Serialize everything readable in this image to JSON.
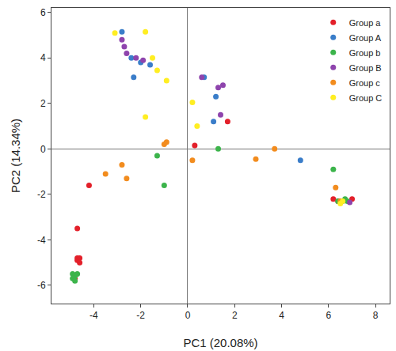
{
  "chart_data": {
    "type": "scatter",
    "x_label": "PC1 (20.08%)",
    "y_label": "PC2 (14.34%)",
    "xlim": [
      -5.8,
      8.6
    ],
    "ylim": [
      -6.8,
      6.2
    ],
    "xticks": [
      -4,
      -2,
      0,
      2,
      4,
      6,
      8
    ],
    "yticks": [
      -6,
      -4,
      -2,
      0,
      2,
      4,
      6
    ],
    "grid": false,
    "legend": "top-right",
    "marker": "circle",
    "series": [
      {
        "name": "Group a",
        "color": "#e3202a",
        "x": [
          -4.7,
          -4.7,
          -4.6,
          -4.6,
          -4.8,
          -4.7,
          -4.2,
          0.3,
          1.7,
          6.2,
          7.0,
          6.4
        ],
        "values": [
          -4.8,
          -4.9,
          -4.8,
          -5.0,
          -5.7,
          -3.5,
          -1.6,
          0.15,
          1.2,
          -2.2,
          -2.2,
          -2.3
        ]
      },
      {
        "name": "Group A",
        "color": "#3a7dc9",
        "x": [
          -2.8,
          -2.4,
          -2.0,
          -1.6,
          -2.3,
          0.7,
          1.2,
          1.1,
          4.8,
          6.6
        ],
        "values": [
          5.15,
          4.0,
          3.8,
          3.7,
          3.15,
          3.15,
          2.3,
          1.2,
          -0.5,
          -2.3
        ]
      },
      {
        "name": "Group b",
        "color": "#3cb44b",
        "x": [
          -4.9,
          -4.8,
          -4.9,
          -4.7,
          -4.8,
          -1.3,
          -1.0,
          1.3,
          6.2,
          6.4,
          6.8,
          6.7
        ],
        "values": [
          -5.5,
          -5.6,
          -5.7,
          -5.5,
          -5.8,
          -0.3,
          -1.6,
          0.0,
          -0.9,
          -2.3,
          -2.3,
          -2.2
        ]
      },
      {
        "name": "Group B",
        "color": "#8e44ad",
        "x": [
          -2.8,
          -2.7,
          -2.6,
          -2.2,
          -1.9,
          0.6,
          1.3,
          1.5,
          1.4,
          6.9
        ],
        "values": [
          4.8,
          4.5,
          4.2,
          4.0,
          3.9,
          3.15,
          2.7,
          2.8,
          1.5,
          -2.35
        ]
      },
      {
        "name": "Group c",
        "color": "#f28c1e",
        "x": [
          -3.5,
          -2.6,
          -2.8,
          -1.0,
          -0.9,
          0.2,
          2.9,
          3.7,
          6.3,
          6.5
        ],
        "values": [
          -1.1,
          -1.3,
          -0.7,
          0.2,
          0.3,
          -0.5,
          -0.45,
          0.0,
          -1.7,
          -2.3
        ]
      },
      {
        "name": "Group C",
        "color": "#ffee22",
        "x": [
          -3.1,
          -1.8,
          -1.5,
          -1.3,
          -0.9,
          -1.8,
          0.2,
          0.4,
          6.5,
          6.6
        ],
        "values": [
          5.1,
          5.15,
          4.0,
          3.45,
          3.0,
          1.4,
          2.05,
          1.0,
          -2.4,
          -2.3
        ]
      }
    ]
  }
}
